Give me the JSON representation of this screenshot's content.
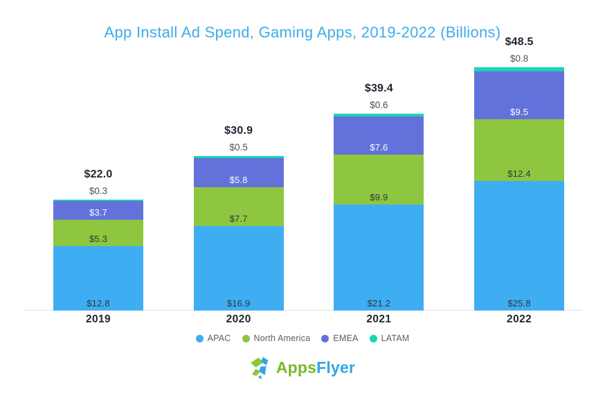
{
  "title": "App Install Ad Spend, Gaming Apps, 2019-2022 (Billions)",
  "colors": {
    "apac": "#3FADF2",
    "north_america": "#8EC63F",
    "emea": "#6372DB",
    "latam": "#1BD5B4",
    "title_text": "#3FABEC",
    "total_text": "#1C2430",
    "above_label_text": "#49525C",
    "dark_label_text": "#2B3640",
    "light_label_text": "#FFFFFF",
    "year_text": "#20262E",
    "legend_text": "#555F6A",
    "axis_line": "#DDE1E4",
    "logo_green": "#77B82A",
    "logo_blue": "#2FA8E1"
  },
  "chart_data": {
    "type": "bar",
    "stacked": true,
    "unit": "USD billions",
    "title": "App Install Ad Spend, Gaming Apps, 2019-2022 (Billions)",
    "categories": [
      "2019",
      "2020",
      "2021",
      "2022"
    ],
    "series": [
      {
        "name": "APAC",
        "color_key": "apac",
        "values": [
          12.8,
          16.9,
          21.2,
          25.8
        ],
        "label_style": "dark",
        "label_placement": "inside"
      },
      {
        "name": "North America",
        "color_key": "north_america",
        "values": [
          5.3,
          7.7,
          9.9,
          12.4
        ],
        "label_style": "dark",
        "label_placement": "inside"
      },
      {
        "name": "EMEA",
        "color_key": "emea",
        "values": [
          3.7,
          5.8,
          7.6,
          9.5
        ],
        "label_style": "light",
        "label_placement": "inside"
      },
      {
        "name": "LATAM",
        "color_key": "latam",
        "values": [
          0.3,
          0.5,
          0.6,
          0.8
        ],
        "label_style": "dark",
        "label_placement": "above"
      }
    ],
    "totals": [
      22.0,
      30.9,
      39.4,
      48.5
    ],
    "value_prefix": "$",
    "legend_position": "bottom",
    "grid": false,
    "ylim": [
      0,
      48.5
    ]
  },
  "legend": {
    "items": [
      {
        "label": "APAC",
        "color_key": "apac"
      },
      {
        "label": "North America",
        "color_key": "north_america"
      },
      {
        "label": "EMEA",
        "color_key": "emea"
      },
      {
        "label": "LATAM",
        "color_key": "latam"
      }
    ]
  },
  "logo": {
    "apps": "Apps",
    "flyer": "Flyer"
  }
}
